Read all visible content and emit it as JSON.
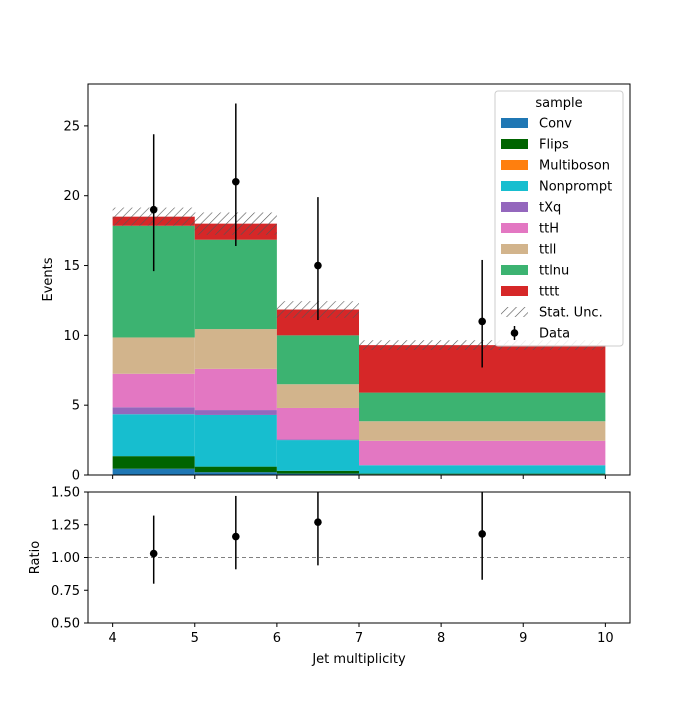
{
  "chart_data": {
    "type": "bar",
    "stacked": true,
    "xlabel": "Jet multiplicity",
    "ylabel": "Events",
    "ratio_ylabel": "Ratio",
    "legend_title": "sample",
    "legend_position": "top-right",
    "xlim": [
      3.7,
      10.3
    ],
    "ylim": [
      0,
      28
    ],
    "ratio_ylim": [
      0.5,
      1.5
    ],
    "ratio_reference": 1.0,
    "xticks": [
      "4",
      "5",
      "6",
      "7",
      "8",
      "9",
      "10"
    ],
    "yticks": [
      "0",
      "5",
      "10",
      "15",
      "20",
      "25"
    ],
    "ratio_yticks": [
      "0.50",
      "0.75",
      "1.00",
      "1.25",
      "1.50"
    ],
    "bins": [
      [
        4,
        5
      ],
      [
        5,
        6
      ],
      [
        6,
        7
      ],
      [
        7,
        10
      ]
    ],
    "series": [
      {
        "name": "Conv",
        "color": "#1f77b4",
        "values": [
          0.45,
          0.2,
          0.1,
          0.05
        ]
      },
      {
        "name": "Flips",
        "color": "#006400",
        "values": [
          0.9,
          0.4,
          0.2,
          0.05
        ]
      },
      {
        "name": "Multiboson",
        "color": "#ff7f0e",
        "values": [
          0.0,
          0.0,
          0.0,
          0.0
        ]
      },
      {
        "name": "Nonprompt",
        "color": "#17becf",
        "values": [
          3.0,
          3.7,
          2.2,
          0.6
        ]
      },
      {
        "name": "tXq",
        "color": "#9467bd",
        "values": [
          0.5,
          0.35,
          0.05,
          0.0
        ]
      },
      {
        "name": "ttH",
        "color": "#e377c2",
        "values": [
          2.4,
          2.95,
          2.25,
          1.75
        ]
      },
      {
        "name": "ttll",
        "color": "#d2b48c",
        "values": [
          2.6,
          2.85,
          1.7,
          1.4
        ]
      },
      {
        "name": "ttlnu",
        "color": "#3cb371",
        "values": [
          8.0,
          6.4,
          3.5,
          2.05
        ]
      },
      {
        "name": "tttt",
        "color": "#d62728",
        "values": [
          0.65,
          1.15,
          1.85,
          3.4
        ]
      }
    ],
    "stat_unc": {
      "name": "Stat. Unc.",
      "errors": [
        0.65,
        0.8,
        0.6,
        0.35
      ]
    },
    "data": {
      "name": "Data",
      "x": [
        4.5,
        5.5,
        6.5,
        8.5
      ],
      "y": [
        19,
        21,
        15,
        11
      ],
      "yerr_low": [
        4.4,
        4.6,
        3.9,
        3.3
      ],
      "yerr_high": [
        5.4,
        5.6,
        4.9,
        4.4
      ]
    },
    "ratio": {
      "x": [
        4.5,
        5.5,
        6.5,
        8.5
      ],
      "y": [
        1.03,
        1.16,
        1.27,
        1.18
      ],
      "yerr_low": [
        0.23,
        0.25,
        0.33,
        0.35
      ],
      "yerr_high": [
        0.29,
        0.31,
        0.4,
        0.45
      ]
    }
  }
}
